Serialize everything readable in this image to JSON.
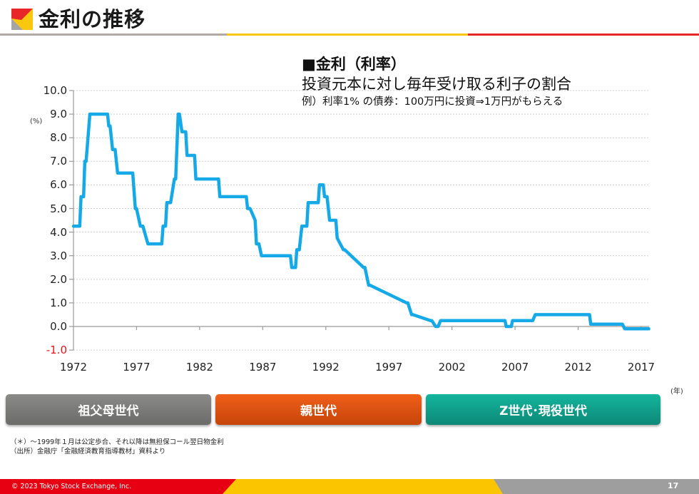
{
  "header": {
    "title": "金利の推移",
    "logo_colors": {
      "red": "#e8262a",
      "yellow": "#f9c80e",
      "gray": "#a5a5a5"
    },
    "rule_colors": [
      "#b0a9a6",
      "#f9c80e",
      "#e8262a"
    ]
  },
  "note": {
    "heading": "■金利（利率）",
    "definition": "投資元本に対し毎年受け取る利子の割合",
    "example": "例）利率1% の債券：100万円に投資⇒1万円がもらえる"
  },
  "chart_data": {
    "type": "line",
    "title": "金利の推移",
    "xlabel": "(年)",
    "ylabel": "(%)",
    "ylim": [
      -1.0,
      10.0
    ],
    "xlim": [
      1972,
      2017.6
    ],
    "grid": true,
    "legend": null,
    "line_color": "#15a9e8",
    "x_ticks": [
      "1972",
      "1977",
      "1982",
      "1987",
      "1992",
      "1997",
      "2002",
      "2007",
      "2012",
      "2017"
    ],
    "y_ticks": [
      "10.0",
      "9.0",
      "8.0",
      "7.0",
      "6.0",
      "5.0",
      "4.0",
      "3.0",
      "2.0",
      "1.0",
      "0.0",
      "-1.0"
    ],
    "series": [
      {
        "name": "金利",
        "x": [
          1972.0,
          1972.5,
          1972.6,
          1972.8,
          1972.9,
          1973.0,
          1973.3,
          1973.4,
          1974.7,
          1974.8,
          1974.9,
          1975.0,
          1975.1,
          1975.3,
          1975.5,
          1976.7,
          1976.9,
          1977.0,
          1977.3,
          1977.5,
          1977.9,
          1978.0,
          1979.0,
          1979.1,
          1979.3,
          1979.4,
          1979.7,
          1980.0,
          1980.1,
          1980.3,
          1980.4,
          1980.6,
          1980.9,
          1981.0,
          1981.6,
          1981.7,
          1983.5,
          1983.6,
          1985.7,
          1985.8,
          1986.0,
          1986.4,
          1986.5,
          1986.7,
          1986.9,
          1989.2,
          1989.3,
          1989.6,
          1989.7,
          1989.9,
          1990.0,
          1990.1,
          1990.5,
          1990.6,
          1991.4,
          1991.5,
          1991.8,
          1991.9,
          1992.1,
          1992.3,
          1992.8,
          1992.9,
          1993.4,
          1993.5,
          1995.0,
          1995.1,
          1995.4,
          1995.5,
          1998.4,
          1998.5,
          1998.8,
          1998.9,
          2000.3,
          2000.4,
          2000.7,
          2000.9,
          2001.1,
          2006.2,
          2006.3,
          2006.7,
          2006.8,
          2008.4,
          2008.6,
          2012.9,
          2013.0,
          2015.5,
          2015.7,
          2017.6
        ],
        "values": [
          4.25,
          4.25,
          5.5,
          5.5,
          7.0,
          7.0,
          9.0,
          9.0,
          9.0,
          8.5,
          8.5,
          8.0,
          7.5,
          7.5,
          6.5,
          6.5,
          5.0,
          5.0,
          4.25,
          4.25,
          3.5,
          3.5,
          3.5,
          4.25,
          4.25,
          5.25,
          5.25,
          6.25,
          6.25,
          9.0,
          9.0,
          8.25,
          8.25,
          7.25,
          7.25,
          6.25,
          6.25,
          5.5,
          5.5,
          5.0,
          5.0,
          4.5,
          3.5,
          3.5,
          3.0,
          3.0,
          2.5,
          2.5,
          3.25,
          3.25,
          3.75,
          4.25,
          4.25,
          5.25,
          5.25,
          6.0,
          6.0,
          5.5,
          5.5,
          4.5,
          4.5,
          3.75,
          3.25,
          3.25,
          2.5,
          2.5,
          1.75,
          1.75,
          1.0,
          1.0,
          0.5,
          0.5,
          0.25,
          0.25,
          0.0,
          0.0,
          0.25,
          0.25,
          0.0,
          0.0,
          0.25,
          0.25,
          0.5,
          0.5,
          0.1,
          0.1,
          -0.1,
          -0.1
        ]
      }
    ],
    "footnotes": [
      "（＊）～1999年１月は公定歩合、それ以降は無担保コール翌日物金利",
      "（出所）金融庁「金融経済教育指導教材」資料より"
    ]
  },
  "chart": {
    "y_unit": "(%)",
    "x_unit": "(年)",
    "y_tick_labels": [
      "10.0",
      "9.0",
      "8.0",
      "7.0",
      "6.0",
      "5.0",
      "4.0",
      "3.0",
      "2.0",
      "1.0",
      "0.0",
      "-1.0"
    ],
    "x_tick_labels": [
      "1972",
      "1977",
      "1982",
      "1987",
      "1992",
      "1997",
      "2002",
      "2007",
      "2012",
      "2017"
    ],
    "negative_tick_color": "#e8141b"
  },
  "generations": [
    {
      "label": "祖父母世代",
      "color": "#7a7a78"
    },
    {
      "label": "親世代",
      "color": "#e25612"
    },
    {
      "label": "Z世代･現役世代",
      "color": "#11a08a"
    }
  ],
  "footnotes": {
    "line1": "（＊）～1999年１月は公定歩合、それ以降は無担保コール翌日物金利",
    "line2": "（出所）金融庁「金融経済教育指導教材」資料より"
  },
  "footer": {
    "copyright": "© 2023 Tokyo Stock Exchange, Inc.",
    "page_number": "17",
    "colors": [
      "#e60012",
      "#fbc600",
      "#9e9e9e"
    ]
  }
}
